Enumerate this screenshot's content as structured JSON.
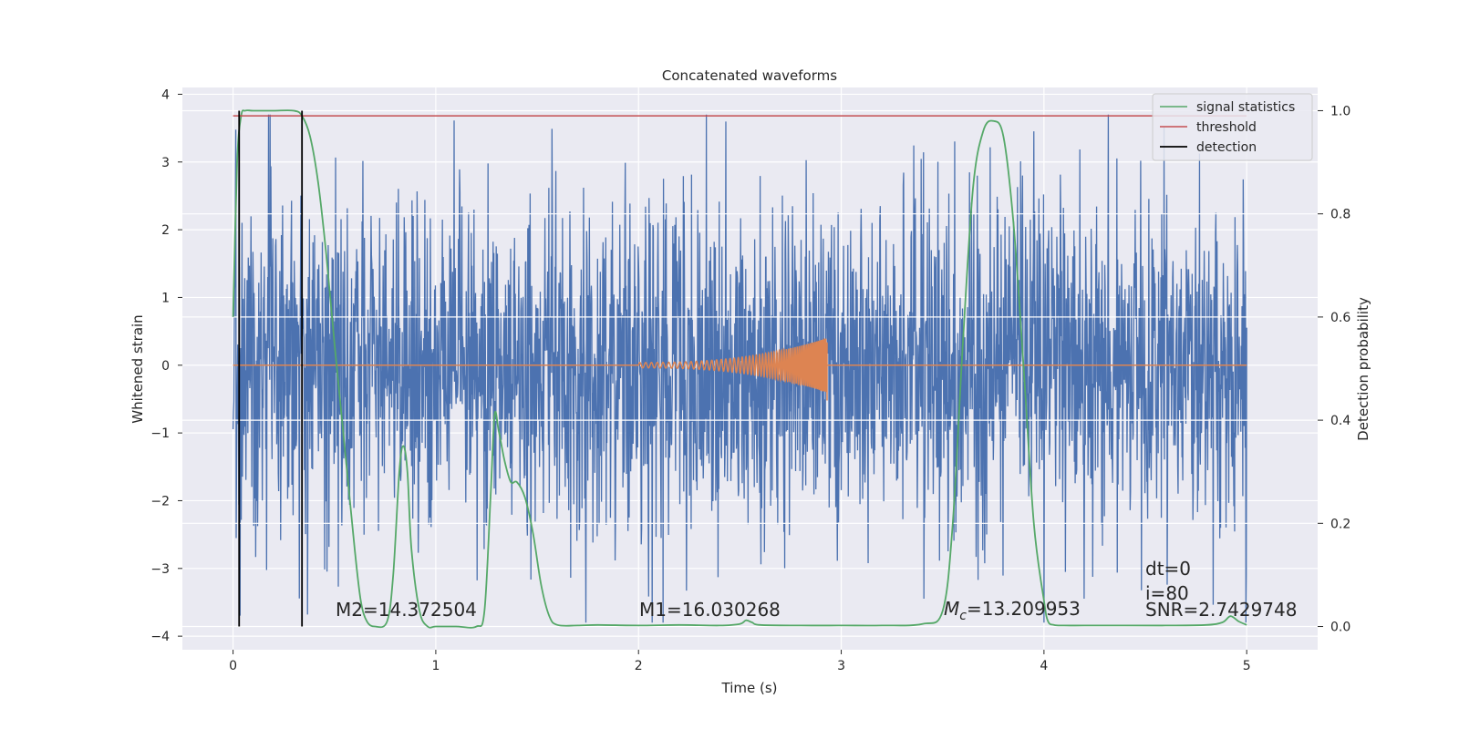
{
  "chart_data": {
    "type": "line",
    "title": "Concatenated waveforms",
    "xlabel": "Time (s)",
    "ylabel": "Whitened strain",
    "y2label": "Detection probability",
    "xlim": [
      -0.25,
      5.35
    ],
    "ylim": [
      -4.2,
      4.1
    ],
    "y2lim": [
      -0.045,
      1.045
    ],
    "xticks": [
      0,
      1,
      2,
      3,
      4,
      5
    ],
    "yticks": [
      -4,
      -3,
      -2,
      -1,
      0,
      1,
      2,
      3,
      4
    ],
    "y2ticks": [
      0.0,
      0.2,
      0.4,
      0.6,
      0.8,
      1.0
    ],
    "grid": true,
    "legend_position": "top-right",
    "legend": [
      "signal statistics",
      "threshold",
      "detection"
    ],
    "colors": {
      "strain": "#4c72b0",
      "template": "#dd8452",
      "statistics": "#55a868",
      "threshold": "#c44e52",
      "detection": "#000000",
      "background": "#eaeaf2"
    },
    "series": [
      {
        "name": "",
        "axis": "left",
        "kind": "whitened-strain-noise",
        "x_range": [
          0,
          5
        ],
        "amplitude_typical": 1.2,
        "amplitude_max": 3.7
      },
      {
        "name": "",
        "axis": "left",
        "kind": "chirp",
        "x_range": [
          2.0,
          2.93
        ],
        "peak_amplitude": 0.4
      },
      {
        "name": "signal statistics",
        "axis": "right",
        "x": [
          0.0,
          0.02,
          0.04,
          0.06,
          0.1,
          0.2,
          0.3,
          0.34,
          0.38,
          0.42,
          0.46,
          0.5,
          0.55,
          0.6,
          0.63,
          0.66,
          0.7,
          0.76,
          0.79,
          0.82,
          0.84,
          0.86,
          0.88,
          0.92,
          0.96,
          1.0,
          1.1,
          1.2,
          1.24,
          1.27,
          1.29,
          1.31,
          1.34,
          1.37,
          1.4,
          1.44,
          1.48,
          1.52,
          1.56,
          1.6,
          1.7,
          1.8,
          2.0,
          2.2,
          2.4,
          2.5,
          2.53,
          2.56,
          2.6,
          2.8,
          3.0,
          3.2,
          3.4,
          3.5,
          3.55,
          3.6,
          3.65,
          3.7,
          3.75,
          3.8,
          3.85,
          3.9,
          3.95,
          4.0,
          4.02,
          4.05,
          4.1,
          4.2,
          4.4,
          4.6,
          4.8,
          4.88,
          4.92,
          4.96,
          5.0
        ],
        "y": [
          0.6,
          0.9,
          0.99,
          1.0,
          1.0,
          1.0,
          1.0,
          0.99,
          0.95,
          0.86,
          0.72,
          0.55,
          0.35,
          0.15,
          0.05,
          0.01,
          0.0,
          0.01,
          0.1,
          0.3,
          0.35,
          0.3,
          0.15,
          0.03,
          0.0,
          0.0,
          0.0,
          0.0,
          0.03,
          0.25,
          0.41,
          0.38,
          0.32,
          0.28,
          0.28,
          0.25,
          0.18,
          0.08,
          0.02,
          0.003,
          0.002,
          0.003,
          0.002,
          0.003,
          0.002,
          0.005,
          0.012,
          0.008,
          0.003,
          0.002,
          0.002,
          0.002,
          0.005,
          0.03,
          0.2,
          0.55,
          0.85,
          0.96,
          0.98,
          0.95,
          0.78,
          0.5,
          0.2,
          0.05,
          0.01,
          0.003,
          0.002,
          0.002,
          0.002,
          0.002,
          0.003,
          0.008,
          0.02,
          0.01,
          0.003
        ]
      },
      {
        "name": "threshold",
        "axis": "right",
        "x": [
          0,
          5
        ],
        "y": [
          0.99,
          0.99
        ]
      },
      {
        "name": "detection",
        "axis": "right",
        "x": [
          0.03,
          0.34
        ],
        "y_span": [
          0.0,
          1.0
        ]
      }
    ],
    "annotations": [
      {
        "text": "M2=14.372504",
        "x": 0.5,
        "y": -3.8
      },
      {
        "text": "M1=16.030268",
        "x": 2.0,
        "y": -3.8
      },
      {
        "text_math": "M",
        "text_sub": "c",
        "text": "=13.209953",
        "x": 3.5,
        "y": -3.8
      },
      {
        "text": "dt=0",
        "x": 4.5,
        "y": -3.2
      },
      {
        "text": "i=80",
        "x": 4.5,
        "y": -3.5
      },
      {
        "text": "SNR=2.7429748",
        "x": 4.5,
        "y": -3.8
      }
    ]
  }
}
